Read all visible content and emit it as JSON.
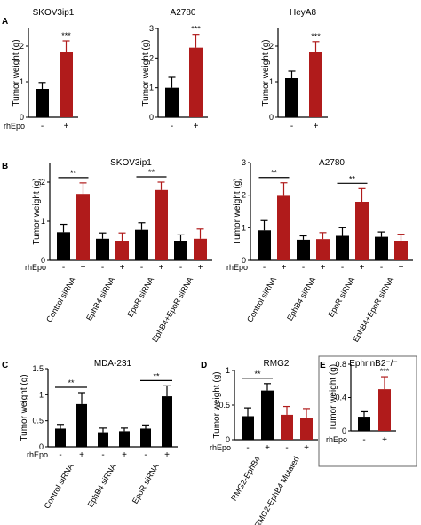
{
  "colors": {
    "black": "#000000",
    "red": "#b01b1b"
  },
  "panels": [
    {
      "letter": "A"
    },
    {
      "letter": "B"
    },
    {
      "letter": "C"
    },
    {
      "letter": "D"
    },
    {
      "letter": "E"
    }
  ],
  "chart_data": [
    {
      "id": "A1",
      "type": "bar",
      "title": "SKOV3ip1",
      "ylabel": "Tumor weight (g)",
      "ylim": [
        0,
        2.5
      ],
      "yticks": [
        "0",
        "1",
        "2"
      ],
      "ytick_values": [
        0,
        1,
        2
      ],
      "row_label": "rhEpo",
      "categories": [
        "-",
        "+"
      ],
      "values": [
        0.8,
        1.85
      ],
      "errors": [
        0.18,
        0.3
      ],
      "bar_colors": [
        "black",
        "red"
      ],
      "significance": [
        {
          "from": 0,
          "to": 1,
          "label": "***",
          "bracket": false
        }
      ]
    },
    {
      "id": "A2",
      "type": "bar",
      "title": "A2780",
      "ylabel": "Tumor weight (g)",
      "ylim": [
        0,
        3
      ],
      "yticks": [
        "0",
        "1",
        "2",
        "3"
      ],
      "ytick_values": [
        0,
        1,
        2,
        3
      ],
      "row_label": "",
      "categories": [
        "-",
        "+"
      ],
      "values": [
        1.0,
        2.35
      ],
      "errors": [
        0.35,
        0.45
      ],
      "bar_colors": [
        "black",
        "red"
      ],
      "significance": [
        {
          "from": 0,
          "to": 1,
          "label": "***",
          "bracket": false
        }
      ]
    },
    {
      "id": "A3",
      "type": "bar",
      "title": "HeyA8",
      "ylabel": "Tumor weight (g)",
      "ylim": [
        0,
        2.5
      ],
      "yticks": [
        "0",
        "1",
        "2"
      ],
      "ytick_values": [
        0,
        1,
        2
      ],
      "row_label": "",
      "categories": [
        "-",
        "+"
      ],
      "values": [
        1.1,
        1.85
      ],
      "errors": [
        0.2,
        0.28
      ],
      "bar_colors": [
        "black",
        "red"
      ],
      "significance": [
        {
          "from": 0,
          "to": 1,
          "label": "***",
          "bracket": false
        }
      ]
    },
    {
      "id": "B1",
      "type": "bar",
      "title": "SKOV3ip1",
      "ylabel": "Tumor weight (g)",
      "ylim": [
        0,
        2.5
      ],
      "yticks": [
        "0",
        "1",
        "2"
      ],
      "ytick_values": [
        0,
        1,
        2
      ],
      "row_label": "rhEpo",
      "categories": [
        "-",
        "+",
        "-",
        "+",
        "-",
        "+",
        "-",
        "+"
      ],
      "values": [
        0.72,
        1.7,
        0.55,
        0.5,
        0.78,
        1.8,
        0.5,
        0.55
      ],
      "errors": [
        0.2,
        0.28,
        0.15,
        0.2,
        0.18,
        0.2,
        0.15,
        0.25
      ],
      "bar_colors": [
        "black",
        "red",
        "black",
        "red",
        "black",
        "red",
        "black",
        "red"
      ],
      "groups": [
        "Control siRNA",
        "EphB4 siRNA",
        "EpoR siRNA",
        "EphB4+EpoR siRNA"
      ],
      "significance": [
        {
          "from": 0,
          "to": 1,
          "label": "**",
          "bracket": true
        },
        {
          "from": 4,
          "to": 5,
          "label": "**",
          "bracket": true
        }
      ]
    },
    {
      "id": "B2",
      "type": "bar",
      "title": "A2780",
      "ylabel": "Tumor weight (g)",
      "ylim": [
        0,
        3
      ],
      "yticks": [
        "0",
        "1",
        "2",
        "3"
      ],
      "ytick_values": [
        0,
        1,
        2,
        3
      ],
      "row_label": "rhEpo",
      "categories": [
        "-",
        "+",
        "-",
        "+",
        "-",
        "+",
        "-",
        "+"
      ],
      "values": [
        0.92,
        1.98,
        0.63,
        0.65,
        0.75,
        1.8,
        0.72,
        0.6
      ],
      "errors": [
        0.3,
        0.4,
        0.12,
        0.2,
        0.25,
        0.4,
        0.15,
        0.2
      ],
      "bar_colors": [
        "black",
        "red",
        "black",
        "red",
        "black",
        "red",
        "black",
        "red"
      ],
      "groups": [
        "Control siRNA",
        "EphB4 siRNA",
        "EpoR siRNA",
        "EphB4+EpoR siRNA"
      ],
      "significance": [
        {
          "from": 0,
          "to": 1,
          "label": "**",
          "bracket": true
        },
        {
          "from": 4,
          "to": 5,
          "label": "**",
          "bracket": true
        }
      ]
    },
    {
      "id": "C",
      "type": "bar",
      "title": "MDA-231",
      "ylabel": "Tumor weight (g)",
      "ylim": [
        0,
        1.5
      ],
      "yticks": [
        "0",
        "0.5",
        "1",
        "1.5"
      ],
      "ytick_values": [
        0,
        0.5,
        1,
        1.5
      ],
      "row_label": "rhEpo",
      "categories": [
        "-",
        "+",
        "-",
        "+",
        "-",
        "+"
      ],
      "values": [
        0.35,
        0.82,
        0.28,
        0.3,
        0.35,
        0.97
      ],
      "errors": [
        0.08,
        0.22,
        0.08,
        0.06,
        0.07,
        0.2
      ],
      "bar_colors": [
        "black",
        "black",
        "black",
        "black",
        "black",
        "black"
      ],
      "groups": [
        "Control siRNA",
        "EphB4 siRNA",
        "EpoR siRNA"
      ],
      "significance": [
        {
          "from": 0,
          "to": 1,
          "label": "**",
          "bracket": true
        },
        {
          "from": 4,
          "to": 5,
          "label": "**",
          "bracket": true
        }
      ]
    },
    {
      "id": "D",
      "type": "bar",
      "title": "RMG2",
      "ylabel": "Tumor weight (g)",
      "ylim": [
        0,
        1
      ],
      "yticks": [
        "0",
        "0.5",
        "1"
      ],
      "ytick_values": [
        0,
        0.5,
        1
      ],
      "row_label": "rhEpo",
      "categories": [
        "-",
        "+",
        "-",
        "+"
      ],
      "values": [
        0.34,
        0.71,
        0.36,
        0.31
      ],
      "errors": [
        0.12,
        0.1,
        0.12,
        0.14
      ],
      "bar_colors": [
        "black",
        "black",
        "red",
        "red"
      ],
      "groups": [
        "RMG2-EphB4",
        "RMG2-EphB4 Mutated"
      ],
      "significance": [
        {
          "from": 0,
          "to": 1,
          "label": "**",
          "bracket": true
        }
      ]
    },
    {
      "id": "E",
      "type": "bar",
      "title": "EphrinB2⁻/⁻",
      "ylabel": "Tumor weight (g)",
      "ylim": [
        0,
        0.8
      ],
      "yticks": [
        "0",
        "0.4",
        "0.8"
      ],
      "ytick_values": [
        0,
        0.4,
        0.8
      ],
      "row_label": "rhEpo",
      "categories": [
        "-",
        "+"
      ],
      "values": [
        0.17,
        0.5
      ],
      "errors": [
        0.06,
        0.15
      ],
      "bar_colors": [
        "black",
        "red"
      ],
      "significance": [
        {
          "from": 0,
          "to": 1,
          "label": "***",
          "bracket": false
        }
      ]
    }
  ]
}
